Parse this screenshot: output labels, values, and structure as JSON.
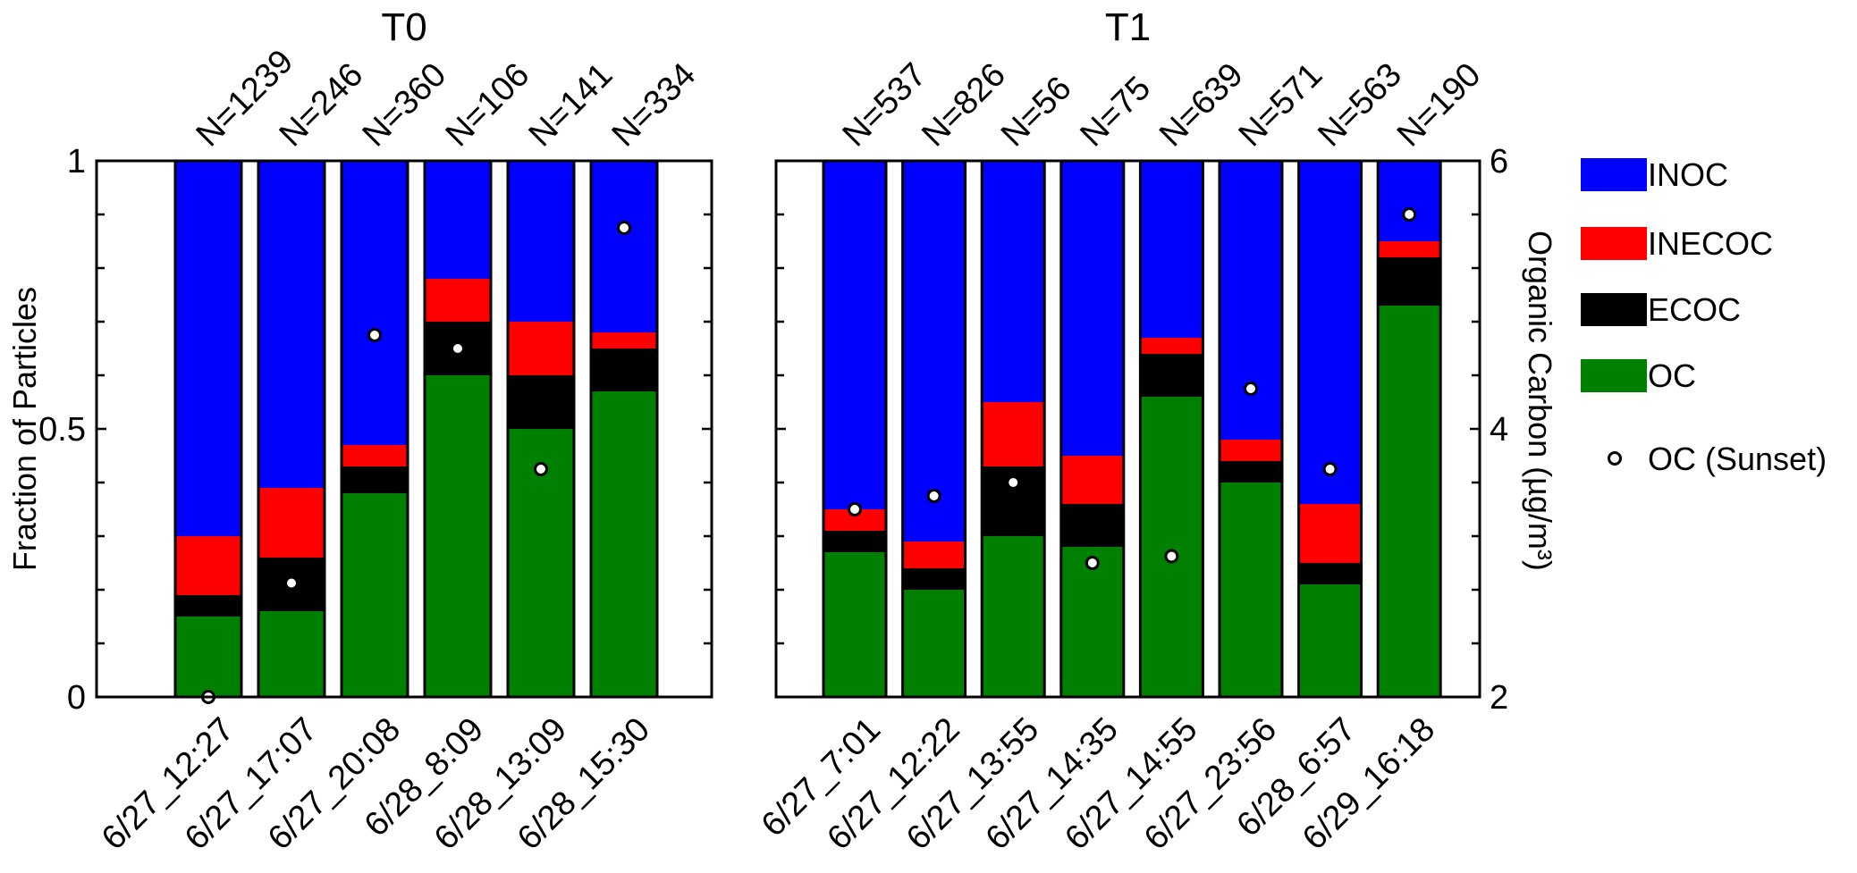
{
  "chart_data": {
    "type": "bar",
    "stacked": true,
    "normalized": true,
    "ylabel": "Fraction of Particles",
    "ylim": [
      0,
      1
    ],
    "yticks": [
      "0",
      "0.5",
      "1"
    ],
    "y2label": "Organic Carbon (µg/m³)",
    "y2lim": [
      2,
      6
    ],
    "y2ticks": [
      "2",
      "4",
      "6"
    ],
    "legend_position": "right",
    "components": [
      {
        "name": "INOC",
        "color": "#0000ff"
      },
      {
        "name": "INECOC",
        "color": "#ff0000"
      },
      {
        "name": "ECOC",
        "color": "#000000"
      },
      {
        "name": "OC",
        "color": "#008000"
      }
    ],
    "marker_label": "OC (Sunset)",
    "panels": [
      {
        "title": "T0",
        "categories": [
          "6/27_12:27",
          "6/27_17:07",
          "6/27_20:08",
          "6/28_8:09",
          "6/28_13:09",
          "6/28_15:30"
        ],
        "counts": [
          "N=1239",
          "N=246",
          "N=360",
          "N=106",
          "N=141",
          "N=334"
        ],
        "OC": [
          0.15,
          0.16,
          0.38,
          0.6,
          0.5,
          0.57
        ],
        "ECOC": [
          0.04,
          0.1,
          0.05,
          0.1,
          0.1,
          0.08
        ],
        "INECOC": [
          0.11,
          0.13,
          0.04,
          0.08,
          0.1,
          0.03
        ],
        "INOC": [
          0.7,
          0.61,
          0.53,
          0.22,
          0.3,
          0.32
        ],
        "oc_sunset": [
          2.0,
          2.85,
          4.7,
          4.6,
          3.7,
          5.5
        ]
      },
      {
        "title": "T1",
        "categories": [
          "6/27_7:01",
          "6/27_12:22",
          "6/27_13:55",
          "6/27_14:35",
          "6/27_14:55",
          "6/27_23:56",
          "6/28_6:57",
          "6/29_16:18"
        ],
        "counts": [
          "N=537",
          "N=826",
          "N=56",
          "N=75",
          "N=639",
          "N=571",
          "N=563",
          "N=190"
        ],
        "OC": [
          0.27,
          0.2,
          0.3,
          0.28,
          0.56,
          0.4,
          0.21,
          0.73
        ],
        "ECOC": [
          0.04,
          0.04,
          0.13,
          0.08,
          0.08,
          0.04,
          0.04,
          0.09
        ],
        "INECOC": [
          0.04,
          0.05,
          0.12,
          0.09,
          0.03,
          0.04,
          0.11,
          0.03
        ],
        "INOC": [
          0.65,
          0.71,
          0.45,
          0.55,
          0.33,
          0.52,
          0.64,
          0.15
        ],
        "oc_sunset": [
          3.4,
          3.5,
          3.6,
          3.0,
          3.05,
          4.3,
          3.7,
          5.6
        ]
      }
    ]
  }
}
